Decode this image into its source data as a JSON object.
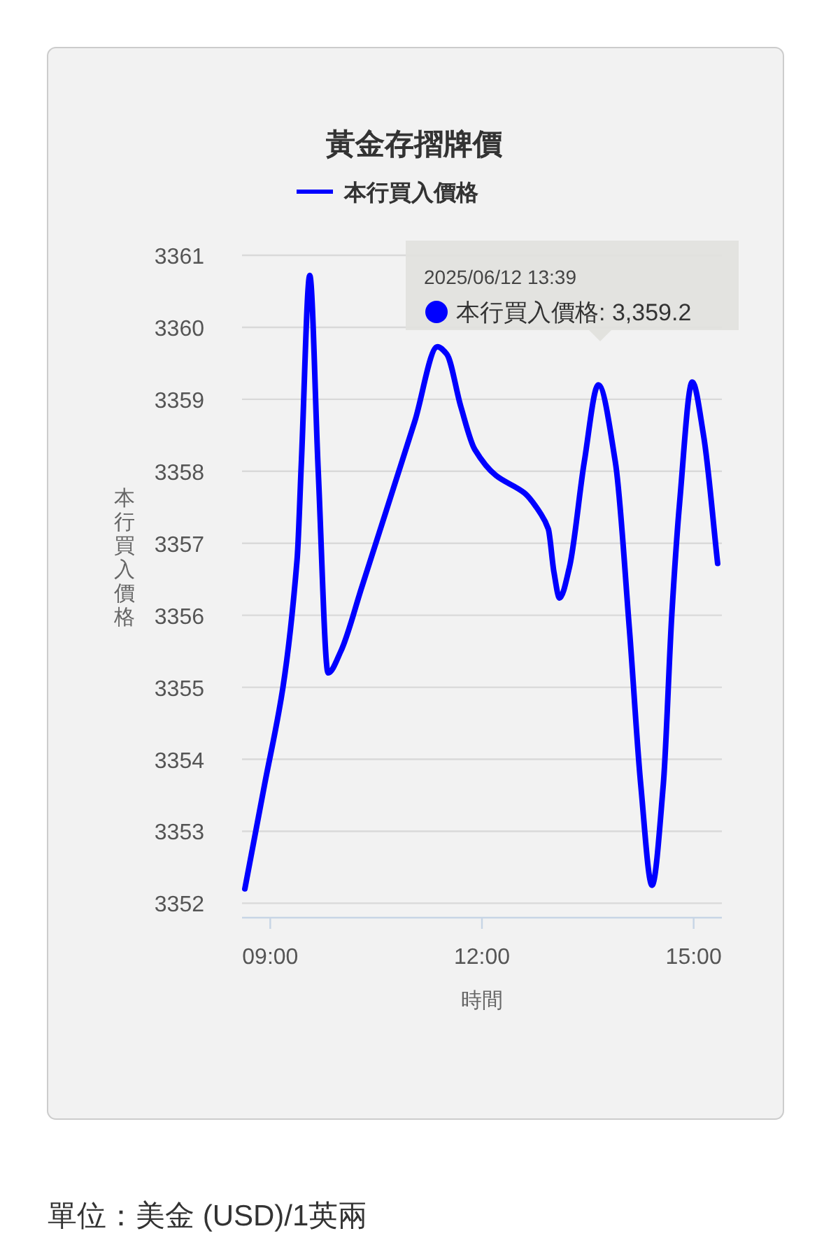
{
  "chart_data": {
    "type": "line",
    "title": "黃金存摺牌價",
    "xlabel": "時間",
    "ylabel": "本行買入價格",
    "x": [
      8.64,
      8.92,
      9.18,
      9.38,
      9.44,
      9.56,
      9.68,
      9.82,
      10.0,
      10.3,
      10.77,
      11.05,
      11.37,
      11.5,
      11.7,
      11.9,
      12.2,
      12.6,
      12.84,
      12.94,
      13.02,
      13.1,
      13.24,
      13.45,
      13.65,
      13.89,
      14.09,
      14.25,
      14.41,
      14.57,
      14.69,
      14.8,
      14.98,
      15.14,
      15.34
    ],
    "series": [
      {
        "name": "本行買入價格",
        "color": "#0000ff",
        "values": [
          3352.2,
          3353.65,
          3355.0,
          3356.77,
          3358.1,
          3360.72,
          3358.0,
          3355.2,
          3355.5,
          3356.4,
          3357.84,
          3358.7,
          3359.73,
          3359.63,
          3358.9,
          3358.3,
          3357.94,
          3357.7,
          3357.4,
          3357.2,
          3356.6,
          3356.24,
          3356.67,
          3358.13,
          3359.2,
          3358.13,
          3355.8,
          3353.65,
          3352.25,
          3353.65,
          3356.0,
          3357.55,
          3359.24,
          3358.5,
          3356.72
        ]
      }
    ],
    "xlim": [
      8.6,
      15.4
    ],
    "xticks": [
      {
        "value": 9,
        "label": "09:00"
      },
      {
        "value": 12,
        "label": "12:00"
      },
      {
        "value": 15,
        "label": "15:00"
      }
    ],
    "ylim": [
      3351.8,
      3361
    ],
    "yticks": [
      3352,
      3353,
      3354,
      3355,
      3356,
      3357,
      3358,
      3359,
      3360,
      3361
    ],
    "grid": "y",
    "legend": "top",
    "marker": "none",
    "line_style": "solid",
    "annotations": [
      "2025/06/12 13:39",
      "本行買入價格: 3,359.2",
      "單位：美金 (USD)/1英兩"
    ]
  }
}
